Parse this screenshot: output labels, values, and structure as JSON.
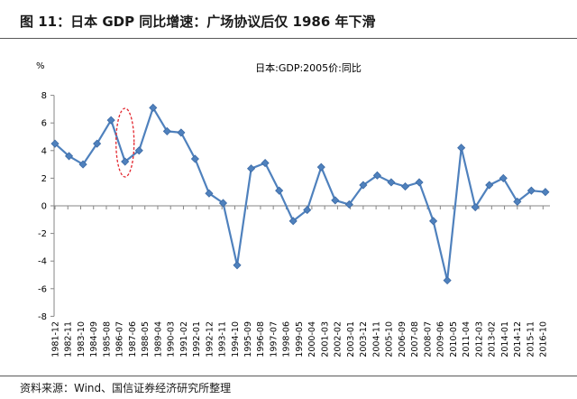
{
  "figure": {
    "caption": "图 11：日本 GDP 同比增速：广场协议后仅 1986 年下滑",
    "source": "资料来源：Wind、国信证券经济研究所整理"
  },
  "colors": {
    "series": "#4F81BD",
    "marker_border": "#3C6AA5",
    "highlight": "#E3262E",
    "axis": "#868686",
    "rule": "#595959"
  },
  "chart_data": {
    "type": "line",
    "title": "日本:GDP:2005价:同比",
    "xlabel": "",
    "ylabel": "%",
    "ylim": [
      -8,
      8
    ],
    "yticks": [
      8,
      6,
      4,
      2,
      0,
      -2,
      -4,
      -6,
      -8
    ],
    "grid": false,
    "marker": "diamond",
    "x_ticks": [
      "1981-12",
      "1982-11",
      "1983-10",
      "1984-09",
      "1985-08",
      "1986-07",
      "1987-06",
      "1988-05",
      "1989-04",
      "1990-03",
      "1991-02",
      "1992-01",
      "1992-12",
      "1993-11",
      "1994-10",
      "1995-09",
      "1996-08",
      "1997-07",
      "1998-06",
      "1999-05",
      "2000-04",
      "2001-03",
      "2002-02",
      "2003-01",
      "2003-12",
      "2004-11",
      "2005-10",
      "2006-09",
      "2007-08",
      "2008-07",
      "2009-06",
      "2010-05",
      "2011-04",
      "2012-03",
      "2013-02",
      "2014-01",
      "2014-12",
      "2015-11",
      "2016-10"
    ],
    "series": [
      {
        "x": [
          1981,
          1982,
          1983,
          1984,
          1985,
          1986,
          1987,
          1988,
          1989,
          1990,
          1991,
          1992,
          1993,
          1994,
          1995,
          1996,
          1997,
          1998,
          1999,
          2000,
          2001,
          2002,
          2003,
          2004,
          2005,
          2006,
          2007,
          2008,
          2009,
          2010,
          2011,
          2012,
          2013,
          2014,
          2015,
          2016
        ],
        "values": [
          4.5,
          3.6,
          3.0,
          4.5,
          6.2,
          3.2,
          4.0,
          7.1,
          5.4,
          5.3,
          3.4,
          0.9,
          0.2,
          -4.3,
          2.7,
          3.1,
          1.1,
          -1.1,
          -0.3,
          2.8,
          0.4,
          0.1,
          1.5,
          2.2,
          1.7,
          1.4,
          1.7,
          -1.1,
          -5.4,
          4.2,
          -0.1,
          1.5,
          2.0,
          0.3,
          1.1,
          1.0
        ]
      }
    ],
    "highlight": {
      "x": 1986,
      "shape": "ellipse",
      "style": "dashed"
    }
  }
}
